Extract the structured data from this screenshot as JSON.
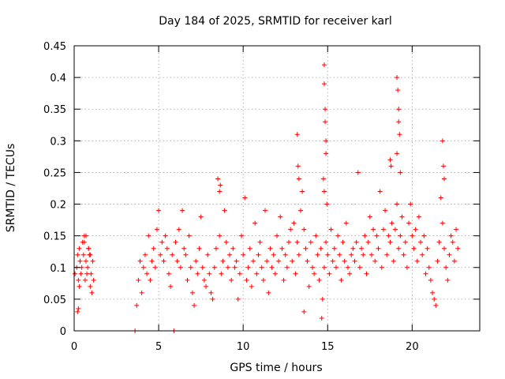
{
  "chart_data": {
    "type": "scatter",
    "title": "Day 184 of 2025, SRMTID for receiver karl",
    "xlabel": "GPS time / hours",
    "ylabel": "SRMTID / TECUs",
    "xlim": [
      0,
      24
    ],
    "ylim": [
      0,
      0.45
    ],
    "xticks": [
      0,
      5,
      10,
      15,
      20
    ],
    "xtick_labels": [
      "0",
      "5",
      "10",
      "15",
      "20"
    ],
    "yticks": [
      0,
      0.05,
      0.1,
      0.15,
      0.2,
      0.25,
      0.3,
      0.35,
      0.4,
      0.45
    ],
    "ytick_labels": [
      "0",
      "0.05",
      "0.1",
      "0.15",
      "0.2",
      "0.25",
      "0.3",
      "0.35",
      "0.4",
      "0.45"
    ],
    "grid": true,
    "marker_color": "#ff0000",
    "series": [
      {
        "name": "SRMTID",
        "marker": "plus",
        "x": [
          0.05,
          0.15,
          0.2,
          0.25,
          0.3,
          0.3,
          0.35,
          0.4,
          0.45,
          0.5,
          0.55,
          0.6,
          0.65,
          0.7,
          0.75,
          0.8,
          0.85,
          0.9,
          0.95,
          1.0,
          1.05,
          1.1,
          1.15,
          0.2,
          0.25,
          0.6,
          0.7,
          0.85,
          0.95,
          3.6,
          3.7,
          3.8,
          3.9,
          4.0,
          4.1,
          4.2,
          4.3,
          4.4,
          4.5,
          4.6,
          4.7,
          4.8,
          4.9,
          5.0,
          5.1,
          5.2,
          5.3,
          5.4,
          5.5,
          5.6,
          5.7,
          5.8,
          5.9,
          6.0,
          6.1,
          6.2,
          6.3,
          6.4,
          6.5,
          6.6,
          6.7,
          6.8,
          6.9,
          7.0,
          7.1,
          7.2,
          7.3,
          7.4,
          7.5,
          7.6,
          7.7,
          7.8,
          7.9,
          8.0,
          8.1,
          8.2,
          8.3,
          8.4,
          8.5,
          8.6,
          8.7,
          8.8,
          8.9,
          9.0,
          9.1,
          9.2,
          9.3,
          9.4,
          9.5,
          9.6,
          9.7,
          9.8,
          9.9,
          10.0,
          10.1,
          10.2,
          10.3,
          10.4,
          10.5,
          10.6,
          10.7,
          10.8,
          10.9,
          11.0,
          11.1,
          11.2,
          11.3,
          11.4,
          11.5,
          11.6,
          11.7,
          11.8,
          11.9,
          12.0,
          12.1,
          12.2,
          12.3,
          12.4,
          12.5,
          12.6,
          12.7,
          12.8,
          12.9,
          13.0,
          13.1,
          13.2,
          13.3,
          13.4,
          13.5,
          13.6,
          13.7,
          13.8,
          13.9,
          14.0,
          14.1,
          14.2,
          14.3,
          14.4,
          14.5,
          14.6,
          14.7,
          14.8,
          14.9,
          15.0,
          15.1,
          15.2,
          15.3,
          15.4,
          15.5,
          15.6,
          15.7,
          15.8,
          15.9,
          16.0,
          16.1,
          16.2,
          16.3,
          16.4,
          16.5,
          16.6,
          16.7,
          16.8,
          16.9,
          17.0,
          17.1,
          17.2,
          17.3,
          17.4,
          17.5,
          17.6,
          17.7,
          17.8,
          17.9,
          18.0,
          18.1,
          18.2,
          18.3,
          18.4,
          18.5,
          18.6,
          18.7,
          18.8,
          18.9,
          19.0,
          19.1,
          19.2,
          19.3,
          19.4,
          19.5,
          19.6,
          19.7,
          19.8,
          19.9,
          20.0,
          20.1,
          20.2,
          20.3,
          20.4,
          20.5,
          20.6,
          20.7,
          20.8,
          20.9,
          21.0,
          21.1,
          21.2,
          21.3,
          21.4,
          21.5,
          21.6,
          21.7,
          21.8,
          21.9,
          22.0,
          22.1,
          22.2,
          22.3,
          22.4,
          22.5,
          22.6,
          22.7,
          14.8,
          14.8,
          14.85,
          14.85,
          14.9,
          14.9,
          14.8,
          14.75,
          14.95,
          19.1,
          19.15,
          19.2,
          19.2,
          19.25,
          19.1,
          19.3,
          13.2,
          13.25,
          13.3,
          21.8,
          21.85,
          21.9,
          14.65,
          13.6,
          8.6,
          8.65,
          18.7,
          18.75
        ],
        "y": [
          0.09,
          0.1,
          0.12,
          0.08,
          0.07,
          0.13,
          0.11,
          0.09,
          0.1,
          0.14,
          0.12,
          0.15,
          0.08,
          0.11,
          0.09,
          0.1,
          0.13,
          0.12,
          0.07,
          0.09,
          0.06,
          0.11,
          0.08,
          0.03,
          0.035,
          0.14,
          0.15,
          0.13,
          0.12,
          0.0,
          0.04,
          0.08,
          0.11,
          0.06,
          0.1,
          0.12,
          0.09,
          0.15,
          0.08,
          0.11,
          0.13,
          0.1,
          0.16,
          0.19,
          0.12,
          0.14,
          0.11,
          0.15,
          0.13,
          0.09,
          0.07,
          0.12,
          0.0,
          0.14,
          0.11,
          0.16,
          0.1,
          0.19,
          0.13,
          0.12,
          0.08,
          0.15,
          0.1,
          0.06,
          0.04,
          0.11,
          0.09,
          0.13,
          0.18,
          0.1,
          0.08,
          0.07,
          0.12,
          0.09,
          0.06,
          0.05,
          0.1,
          0.13,
          0.24,
          0.15,
          0.09,
          0.11,
          0.19,
          0.14,
          0.1,
          0.12,
          0.08,
          0.13,
          0.1,
          0.11,
          0.05,
          0.09,
          0.15,
          0.12,
          0.21,
          0.08,
          0.1,
          0.13,
          0.07,
          0.11,
          0.17,
          0.09,
          0.12,
          0.14,
          0.1,
          0.08,
          0.19,
          0.11,
          0.06,
          0.13,
          0.1,
          0.12,
          0.09,
          0.15,
          0.11,
          0.18,
          0.13,
          0.08,
          0.12,
          0.1,
          0.14,
          0.16,
          0.11,
          0.17,
          0.09,
          0.14,
          0.12,
          0.19,
          0.22,
          0.16,
          0.13,
          0.11,
          0.07,
          0.14,
          0.1,
          0.09,
          0.15,
          0.12,
          0.08,
          0.13,
          0.05,
          0.1,
          0.14,
          0.12,
          0.09,
          0.16,
          0.11,
          0.13,
          0.1,
          0.15,
          0.12,
          0.08,
          0.14,
          0.11,
          0.17,
          0.1,
          0.09,
          0.12,
          0.13,
          0.11,
          0.14,
          0.25,
          0.1,
          0.13,
          0.12,
          0.15,
          0.09,
          0.14,
          0.18,
          0.12,
          0.16,
          0.11,
          0.15,
          0.13,
          0.22,
          0.1,
          0.16,
          0.19,
          0.12,
          0.15,
          0.14,
          0.17,
          0.11,
          0.16,
          0.2,
          0.13,
          0.15,
          0.18,
          0.12,
          0.14,
          0.1,
          0.17,
          0.2,
          0.15,
          0.13,
          0.16,
          0.11,
          0.18,
          0.14,
          0.12,
          0.15,
          0.09,
          0.13,
          0.1,
          0.08,
          0.06,
          0.05,
          0.04,
          0.11,
          0.14,
          0.21,
          0.17,
          0.13,
          0.1,
          0.08,
          0.12,
          0.15,
          0.14,
          0.11,
          0.16,
          0.13,
          0.42,
          0.39,
          0.35,
          0.33,
          0.3,
          0.28,
          0.22,
          0.24,
          0.2,
          0.4,
          0.38,
          0.35,
          0.33,
          0.31,
          0.28,
          0.25,
          0.31,
          0.26,
          0.24,
          0.3,
          0.26,
          0.24,
          0.02,
          0.03,
          0.22,
          0.23,
          0.27,
          0.26
        ]
      }
    ]
  }
}
